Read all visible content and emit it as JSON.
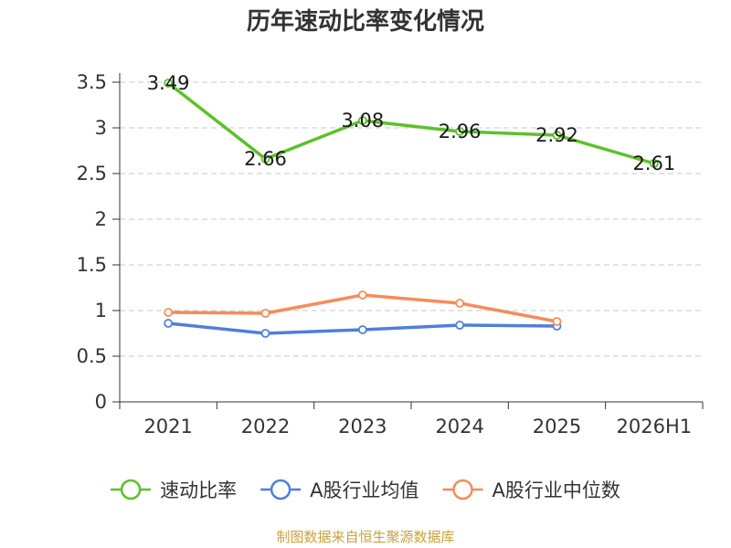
{
  "chart_data": {
    "type": "line",
    "title": "历年速动比率变化情况",
    "categories": [
      "2021",
      "2022",
      "2023",
      "2024",
      "2025",
      "2026H1"
    ],
    "ylim": [
      0,
      3.5
    ],
    "yticks": [
      "0",
      "0.5",
      "1",
      "1.5",
      "2",
      "2.5",
      "3",
      "3.5"
    ],
    "grid": true,
    "legend_position": "bottom",
    "series": [
      {
        "name": "速动比率",
        "color": "#5cc12a",
        "values": [
          3.49,
          2.66,
          3.08,
          2.96,
          2.92,
          2.61
        ],
        "labels": [
          "3.49",
          "2.66",
          "3.08",
          "2.96",
          "2.92",
          "2.61"
        ]
      },
      {
        "name": "A股行业均值",
        "color": "#4f7fdc",
        "values": [
          0.86,
          0.75,
          0.79,
          0.84,
          0.83,
          null
        ]
      },
      {
        "name": "A股行业中位数",
        "color": "#f78b58",
        "values": [
          0.98,
          0.97,
          1.17,
          1.08,
          0.88,
          null
        ]
      }
    ],
    "source": "制图数据来自恒生聚源数据库"
  }
}
